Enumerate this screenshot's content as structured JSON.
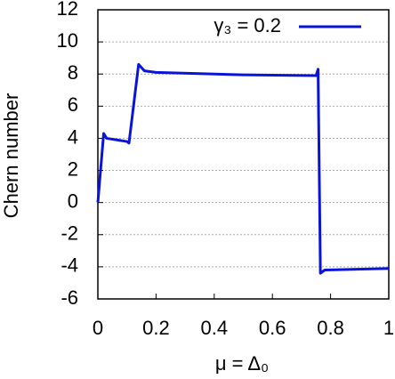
{
  "chart_data": {
    "type": "line",
    "xlabel": "μ = Δ₀",
    "ylabel": "Chern number",
    "x": [
      0,
      0.02,
      0.03,
      0.1,
      0.107,
      0.14,
      0.16,
      0.2,
      0.5,
      0.75,
      0.757,
      0.765,
      0.78,
      1
    ],
    "series": [
      {
        "name": "γ₃ = 0.2",
        "color": "#0a14d8",
        "values": [
          0,
          4.3,
          4.0,
          3.8,
          3.7,
          8.6,
          8.2,
          8.1,
          7.95,
          7.9,
          8.3,
          -4.4,
          -4.2,
          -4.1
        ]
      }
    ],
    "xlim": [
      0,
      1
    ],
    "xticks": [
      0,
      0.2,
      0.4,
      0.6,
      0.8,
      1
    ],
    "ylim": [
      -6,
      12
    ],
    "yticks": [
      -6,
      -4,
      -2,
      0,
      2,
      4,
      6,
      8,
      10,
      12
    ],
    "grid": true,
    "legend": "top-right"
  }
}
